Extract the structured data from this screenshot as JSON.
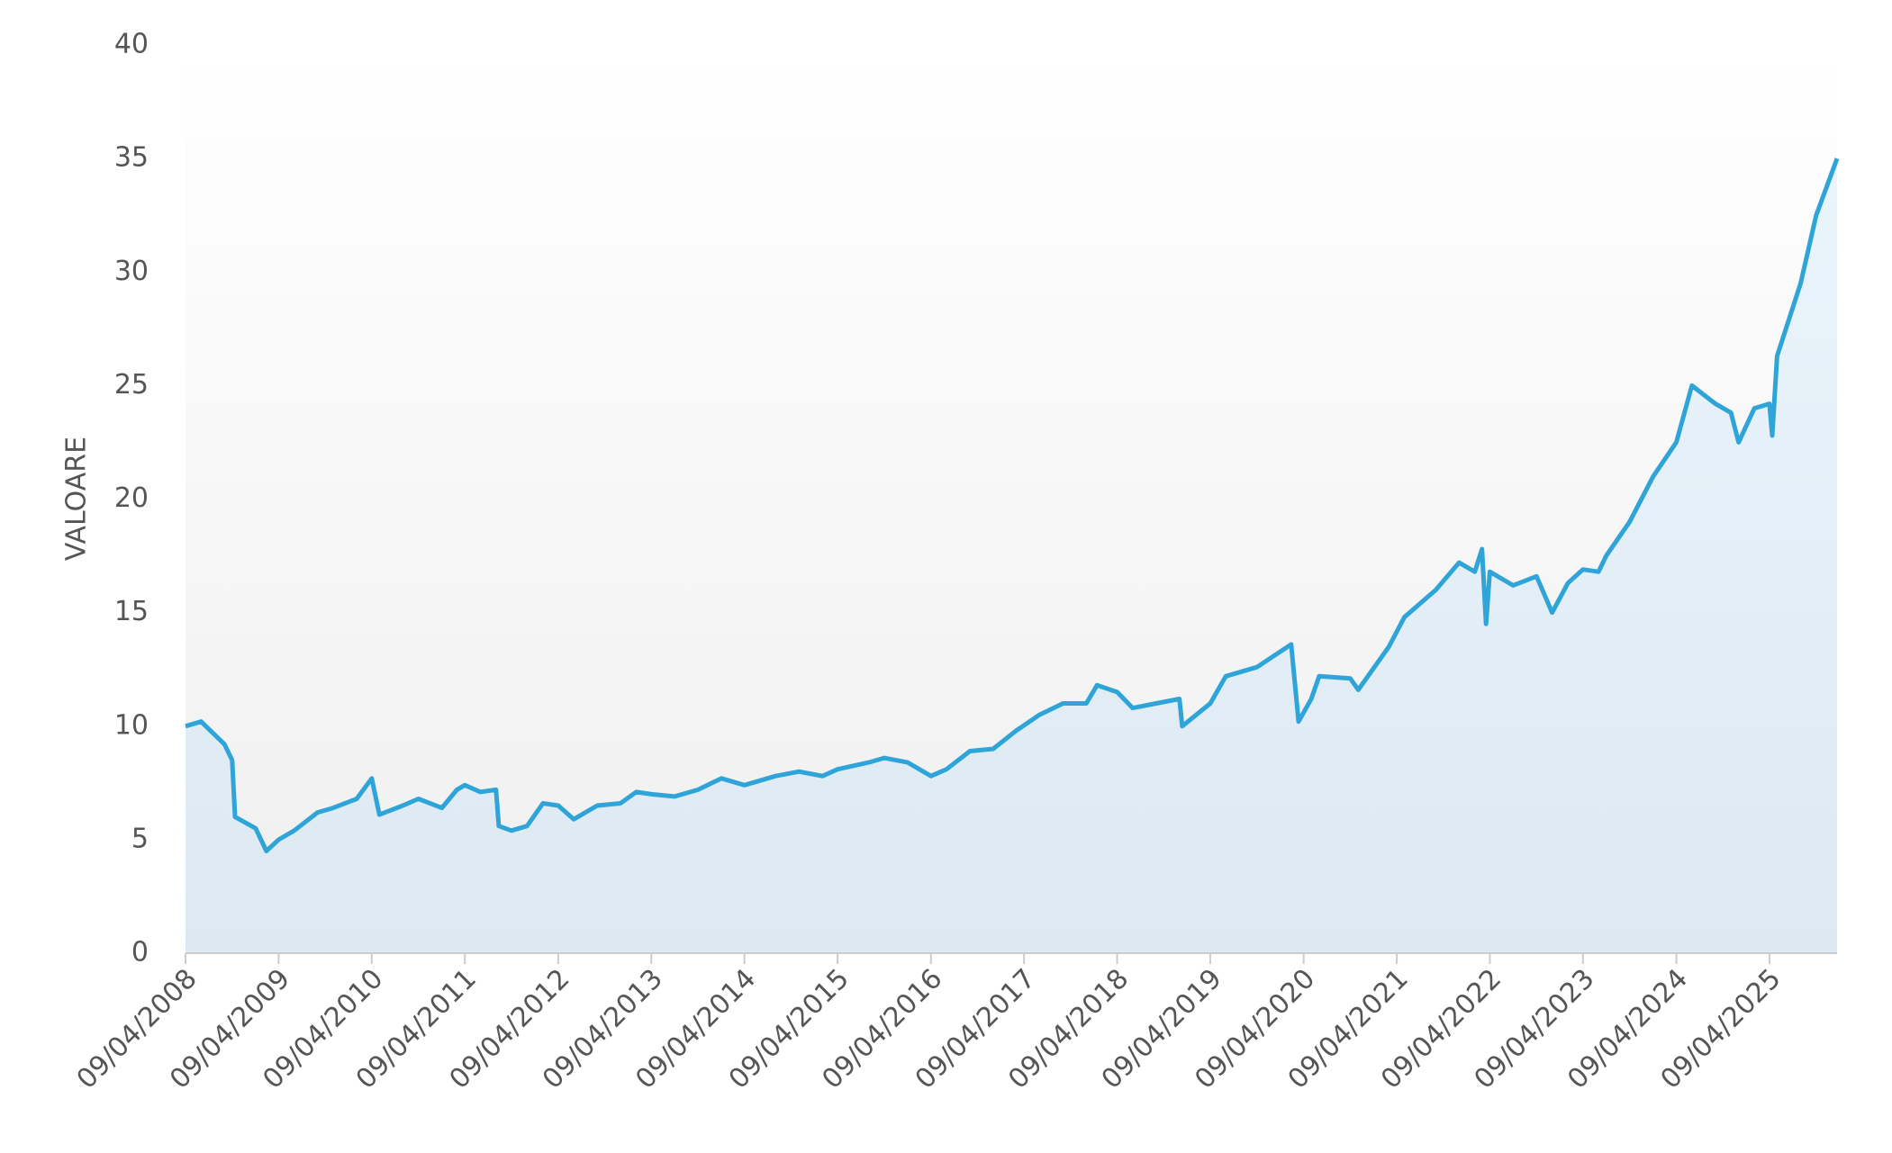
{
  "chart_data": {
    "type": "area",
    "y_label": "VALOARE",
    "x": [
      "09/04/2008",
      "09/06/2008",
      "09/09/2008",
      "09/10/2008",
      "20/10/2008",
      "09/01/2009",
      "20/02/2009",
      "09/04/2009",
      "09/06/2009",
      "09/09/2009",
      "09/11/2009",
      "09/02/2010",
      "09/04/2010",
      "09/05/2010",
      "09/08/2010",
      "09/10/2010",
      "09/01/2011",
      "09/03/2011",
      "09/04/2011",
      "09/06/2011",
      "09/08/2011",
      "20/08/2011",
      "09/10/2011",
      "09/12/2011",
      "09/02/2012",
      "09/04/2012",
      "09/06/2012",
      "09/09/2012",
      "09/12/2012",
      "09/02/2013",
      "09/04/2013",
      "09/07/2013",
      "09/10/2013",
      "09/01/2014",
      "09/04/2014",
      "09/08/2014",
      "09/11/2014",
      "09/02/2015",
      "09/04/2015",
      "09/08/2015",
      "09/10/2015",
      "09/01/2016",
      "09/04/2016",
      "09/06/2016",
      "09/09/2016",
      "09/12/2016",
      "09/03/2017",
      "09/06/2017",
      "09/09/2017",
      "09/12/2017",
      "20/01/2018",
      "09/04/2018",
      "09/06/2018",
      "09/09/2018",
      "09/12/2018",
      "20/12/2018",
      "09/04/2019",
      "09/06/2019",
      "09/10/2019",
      "20/02/2020",
      "20/03/2020",
      "09/05/2020",
      "09/06/2020",
      "09/10/2020",
      "09/11/2020",
      "09/03/2021",
      "09/05/2021",
      "09/09/2021",
      "09/12/2021",
      "09/02/2022",
      "09/03/2022",
      "25/03/2022",
      "09/04/2022",
      "09/07/2022",
      "09/10/2022",
      "09/12/2022",
      "09/02/2023",
      "09/04/2023",
      "09/06/2023",
      "09/07/2023",
      "09/10/2023",
      "09/01/2024",
      "09/04/2024",
      "09/06/2024",
      "09/09/2024",
      "09/11/2024",
      "09/12/2024",
      "09/02/2025",
      "09/04/2025",
      "20/04/2025",
      "09/05/2025",
      "09/08/2025",
      "09/10/2025",
      "30/12/2025"
    ],
    "values": [
      10.0,
      10.2,
      9.2,
      8.5,
      6.0,
      5.5,
      4.5,
      5.0,
      5.4,
      6.2,
      6.4,
      6.8,
      7.7,
      6.1,
      6.5,
      6.8,
      6.4,
      7.2,
      7.4,
      7.1,
      7.2,
      5.6,
      5.4,
      5.6,
      6.6,
      6.5,
      5.9,
      6.5,
      6.6,
      7.1,
      7.0,
      6.9,
      7.2,
      7.7,
      7.4,
      7.8,
      8.0,
      7.8,
      8.1,
      8.4,
      8.6,
      8.4,
      7.8,
      8.1,
      8.9,
      9.0,
      9.8,
      10.5,
      11.0,
      11.0,
      11.8,
      11.5,
      10.8,
      11.0,
      11.2,
      10.0,
      11.0,
      12.2,
      12.6,
      13.6,
      10.2,
      11.2,
      12.2,
      12.1,
      11.6,
      13.5,
      14.8,
      16.0,
      17.2,
      16.8,
      17.8,
      14.5,
      16.8,
      16.2,
      16.6,
      15.0,
      16.3,
      16.9,
      16.8,
      17.5,
      19.0,
      21.0,
      22.5,
      25.0,
      24.2,
      23.8,
      22.5,
      24.0,
      24.2,
      22.8,
      26.3,
      29.5,
      32.5,
      35.0
    ],
    "color": "#2fa4d8",
    "xlim": [
      "09/04/2008",
      "30/12/2025"
    ],
    "xticks": [
      "09/04/2008",
      "09/04/2009",
      "09/04/2010",
      "09/04/2011",
      "09/04/2012",
      "09/04/2013",
      "09/04/2014",
      "09/04/2015",
      "09/04/2016",
      "09/04/2017",
      "09/04/2018",
      "09/04/2019",
      "09/04/2020",
      "09/04/2021",
      "09/04/2022",
      "09/04/2023",
      "09/04/2024",
      "09/04/2025"
    ],
    "ylim": [
      0,
      40
    ],
    "yticks": [
      0,
      5,
      10,
      15,
      20,
      25,
      30,
      35,
      40
    ],
    "grid": false
  }
}
